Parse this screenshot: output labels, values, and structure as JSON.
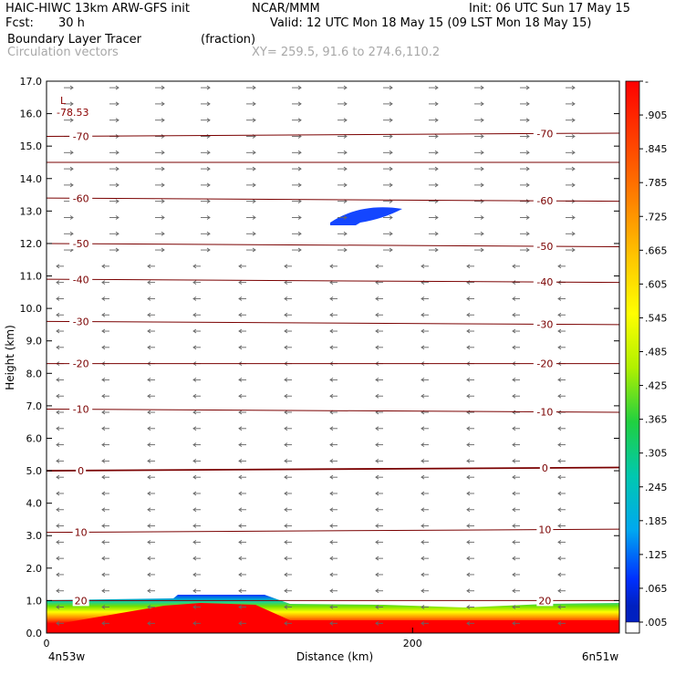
{
  "header": {
    "model": "HAIC-HIWC 13km ARW-GFS init",
    "org": "NCAR/MMM",
    "init": "Init: 06 UTC Sun 17 May 15",
    "fcst_label": "Fcst:",
    "fcst_value": "30 h",
    "valid": "Valid: 12 UTC Mon 18 May 15 (09 LST Mon 18 May 15)",
    "field": "Boundary Layer Tracer",
    "units": "(fraction)",
    "overlay": "Circulation vectors",
    "xy": "XY= 259.5, 91.6 to 274.6,110.2"
  },
  "chart_data": {
    "type": "cross-section",
    "ylabel": "Height (km)",
    "xlabel": "Distance (km)",
    "ylim": [
      0,
      17
    ],
    "y_ticks": [
      "0.0",
      "1.0",
      "2.0",
      "3.0",
      "4.0",
      "5.0",
      "6.0",
      "7.0",
      "8.0",
      "9.0",
      "10.0",
      "11.0",
      "12.0",
      "13.0",
      "14.0",
      "15.0",
      "16.0",
      "17.0"
    ],
    "x_ticks": [
      {
        "value": 0,
        "label": "0"
      },
      {
        "value": 200,
        "label": "200"
      }
    ],
    "x_range_km": [
      0,
      313
    ],
    "x_end_labels": {
      "left": "4n53w",
      "right": "6n51w"
    },
    "low_label": "L",
    "low_value": "-78.53",
    "contours": [
      {
        "label": "-70",
        "heights": [
          15.3,
          15.4
        ]
      },
      {
        "label": "",
        "heights": [
          14.5,
          14.5
        ]
      },
      {
        "label": "-60",
        "heights": [
          13.4,
          13.3
        ]
      },
      {
        "label": "-50",
        "heights": [
          12.0,
          11.9
        ]
      },
      {
        "label": "-40",
        "heights": [
          10.9,
          10.8
        ]
      },
      {
        "label": "-30",
        "heights": [
          9.6,
          9.5
        ]
      },
      {
        "label": "-20",
        "heights": [
          8.3,
          8.3
        ]
      },
      {
        "label": "-10",
        "heights": [
          6.9,
          6.8
        ]
      },
      {
        "label": "0",
        "heights": [
          5.0,
          5.1
        ]
      },
      {
        "label": "10",
        "heights": [
          3.1,
          3.2
        ]
      },
      {
        "label": "20",
        "heights": [
          1.0,
          1.0
        ]
      }
    ],
    "colorbar": {
      "labels": [
        "-",
        ".905",
        ".845",
        ".785",
        ".725",
        ".665",
        ".605",
        ".545",
        ".485",
        ".425",
        ".365",
        ".305",
        ".245",
        ".185",
        ".125",
        ".065",
        ".005"
      ],
      "colors": [
        "#ff0000",
        "#ff2a00",
        "#ff5a00",
        "#ff8c00",
        "#ffb400",
        "#ffd800",
        "#ffff00",
        "#d8ff00",
        "#a8f000",
        "#70e000",
        "#20d040",
        "#00c890",
        "#00c8c8",
        "#00a8f0",
        "#0070ff",
        "#0030ff",
        "#ffffff"
      ]
    }
  }
}
